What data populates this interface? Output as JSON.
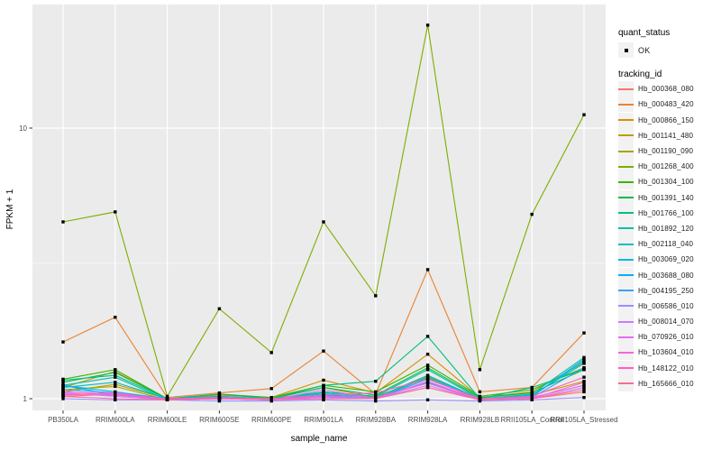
{
  "figure": {
    "background": "#FFFFFF",
    "panel_background": "#EBEBEB",
    "grid_color": "#FFFFFF",
    "tick_label_color": "#4D4D4D",
    "axis_text_color": "#000000"
  },
  "axes": {
    "x_title": "sample_name",
    "y_title": "FPKM + 1",
    "y_ticks": [
      {
        "label": "1",
        "value": 1
      },
      {
        "label": "10",
        "value": 10
      }
    ]
  },
  "legend": {
    "quant_status_title": "quant_status",
    "quant_status_items": [
      {
        "label": "OK",
        "marker": "black-square"
      }
    ],
    "tracking_id_title": "tracking_id"
  },
  "chart_data": {
    "type": "line",
    "title": "",
    "xlabel": "sample_name",
    "ylabel": "FPKM + 1",
    "y_scale": "log10",
    "ylim": [
      0.9,
      28.5
    ],
    "grid": true,
    "legend_position": "right",
    "point_marker": {
      "shape": "square",
      "color": "#000000",
      "size": 3.4
    },
    "categories": [
      "PB350LA",
      "RRIM600LA",
      "RRIM600LE",
      "RRIM600SE",
      "RRIM600PE",
      "RRIM901LA",
      "RRIM928BA",
      "RRIM928LA",
      "RRIM928LB",
      "RRII105LA_Control",
      "RRII105LA_Stressed"
    ],
    "series": [
      {
        "name": "Hb_000368_080",
        "color": "#F8766D",
        "values": [
          1.02,
          1.04,
          0.99,
          1.0,
          0.99,
          1.02,
          1.0,
          1.1,
          0.99,
          1.0,
          1.06
        ]
      },
      {
        "name": "Hb_000483_420",
        "color": "#EA8331",
        "values": [
          1.62,
          2.0,
          1.01,
          1.05,
          1.09,
          1.5,
          1.04,
          3.0,
          1.06,
          1.1,
          1.75
        ]
      },
      {
        "name": "Hb_000866_150",
        "color": "#D89000",
        "values": [
          1.1,
          1.26,
          1.0,
          1.03,
          1.01,
          1.17,
          1.05,
          1.46,
          1.01,
          1.06,
          1.36
        ]
      },
      {
        "name": "Hb_001141_480",
        "color": "#C09B00",
        "values": [
          1.06,
          1.13,
          1.0,
          1.01,
          1.0,
          1.1,
          1.01,
          1.21,
          1.0,
          1.03,
          1.16
        ]
      },
      {
        "name": "Hb_001190_090",
        "color": "#A3A500",
        "values": [
          1.08,
          1.11,
          0.99,
          1.01,
          1.0,
          1.06,
          1.02,
          1.19,
          0.99,
          1.01,
          1.12
        ]
      },
      {
        "name": "Hb_001268_400",
        "color": "#7CAE00",
        "values": [
          4.5,
          4.9,
          1.02,
          2.15,
          1.48,
          4.5,
          2.4,
          24.0,
          1.28,
          4.8,
          11.2
        ]
      },
      {
        "name": "Hb_001304_100",
        "color": "#39B600",
        "values": [
          1.18,
          1.28,
          1.0,
          1.04,
          1.01,
          1.12,
          1.06,
          1.33,
          1.02,
          1.08,
          1.3
        ]
      },
      {
        "name": "Hb_001391_140",
        "color": "#00BB4E",
        "values": [
          1.15,
          1.25,
          1.0,
          1.02,
          1.0,
          1.1,
          1.03,
          1.3,
          1.01,
          1.05,
          1.28
        ]
      },
      {
        "name": "Hb_001766_100",
        "color": "#00BF7D",
        "values": [
          1.17,
          1.22,
          1.0,
          1.04,
          1.0,
          1.12,
          1.16,
          1.7,
          1.0,
          1.1,
          1.28
        ]
      },
      {
        "name": "Hb_001892_120",
        "color": "#00C1A3",
        "values": [
          1.12,
          1.2,
          0.99,
          1.01,
          1.0,
          1.06,
          1.02,
          1.28,
          1.0,
          1.04,
          1.42
        ]
      },
      {
        "name": "Hb_002118_040",
        "color": "#00BFC4",
        "values": [
          1.1,
          1.15,
          1.0,
          1.01,
          1.0,
          1.05,
          1.01,
          1.22,
          1.0,
          1.03,
          1.35
        ]
      },
      {
        "name": "Hb_003069_020",
        "color": "#00BAE0",
        "values": [
          1.12,
          1.06,
          1.0,
          1.02,
          1.0,
          1.04,
          1.0,
          1.2,
          1.0,
          1.02,
          1.38
        ]
      },
      {
        "name": "Hb_003688_080",
        "color": "#00B0F6",
        "values": [
          1.12,
          1.03,
          1.0,
          1.0,
          1.0,
          1.03,
          1.0,
          1.18,
          1.0,
          1.02,
          1.4
        ]
      },
      {
        "name": "Hb_004195_250",
        "color": "#35A2FF",
        "values": [
          1.08,
          1.05,
          1.0,
          1.0,
          1.0,
          1.02,
          1.0,
          1.15,
          0.99,
          1.01,
          1.3
        ]
      },
      {
        "name": "Hb_006586_010",
        "color": "#9590FF",
        "values": [
          1.0,
          0.99,
          0.99,
          0.98,
          0.98,
          0.99,
          0.98,
          0.99,
          0.98,
          0.99,
          1.01
        ]
      },
      {
        "name": "Hb_008014_070",
        "color": "#C77CFF",
        "values": [
          1.05,
          1.02,
          0.99,
          1.0,
          0.99,
          1.01,
          1.0,
          1.12,
          0.99,
          1.0,
          1.1
        ]
      },
      {
        "name": "Hb_070926_010",
        "color": "#E76BF3",
        "values": [
          1.04,
          1.03,
          0.99,
          1.0,
          0.99,
          1.08,
          1.0,
          1.16,
          0.99,
          1.01,
          1.12
        ]
      },
      {
        "name": "Hb_103604_010",
        "color": "#FA62DB",
        "values": [
          1.03,
          1.05,
          0.99,
          1.0,
          0.99,
          1.02,
          1.01,
          1.14,
          0.99,
          1.0,
          1.15
        ]
      },
      {
        "name": "Hb_148122_010",
        "color": "#FF62BC",
        "values": [
          1.06,
          1.04,
          1.0,
          1.01,
          1.0,
          1.03,
          1.05,
          1.18,
          1.0,
          1.02,
          1.2
        ]
      },
      {
        "name": "Hb_165666_010",
        "color": "#FF6A98",
        "values": [
          1.02,
          1.0,
          0.99,
          1.0,
          0.99,
          1.0,
          1.0,
          1.1,
          0.99,
          1.0,
          1.08
        ]
      }
    ]
  }
}
